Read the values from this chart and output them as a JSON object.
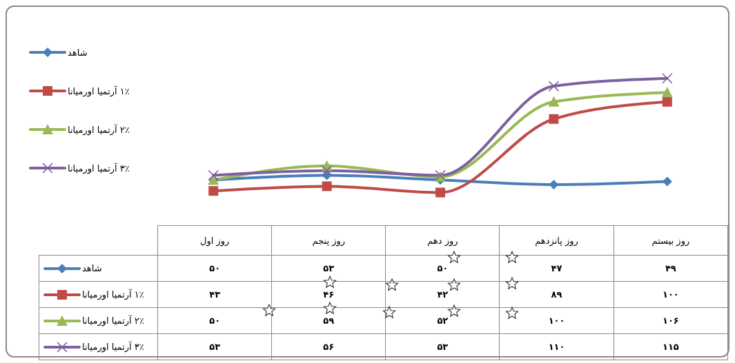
{
  "chart_data": {
    "type": "line",
    "categories": [
      "روز اول",
      "روز پنجم",
      "روز دهم",
      "روز پانزدهم",
      "روز بیستم"
    ],
    "series": [
      {
        "name": "شاهد",
        "color": "#4a7ebb",
        "marker": "diamond",
        "values": [
          50,
          53,
          50,
          47,
          49
        ],
        "value_labels": [
          "۵۰",
          "۵۳",
          "۵۰",
          "۴۷",
          "۴۹"
        ]
      },
      {
        "name": "۱٪ آرتمیا اورمیانا",
        "color": "#be4b48",
        "marker": "square",
        "values": [
          43,
          46,
          42,
          89,
          100
        ],
        "value_labels": [
          "۴۳",
          "۴۶",
          "۴۲",
          "۸۹",
          "۱۰۰"
        ]
      },
      {
        "name": "۲٪ آرتمیا اورمیانا",
        "color": "#98b954",
        "marker": "triangle",
        "values": [
          50,
          59,
          52,
          100,
          106
        ],
        "value_labels": [
          "۵۰",
          "۵۹",
          "۵۲",
          "۱۰۰",
          "۱۰۶"
        ]
      },
      {
        "name": "۳٪ آرتمیا اورمیانا",
        "color": "#7d60a0",
        "marker": "cross",
        "values": [
          53,
          56,
          53,
          110,
          115
        ],
        "value_labels": [
          "۵۳",
          "۵۶",
          "۵۳",
          "۱۱۰",
          "۱۱۵"
        ]
      }
    ],
    "legend": "left",
    "tick_labels": "x"
  }
}
